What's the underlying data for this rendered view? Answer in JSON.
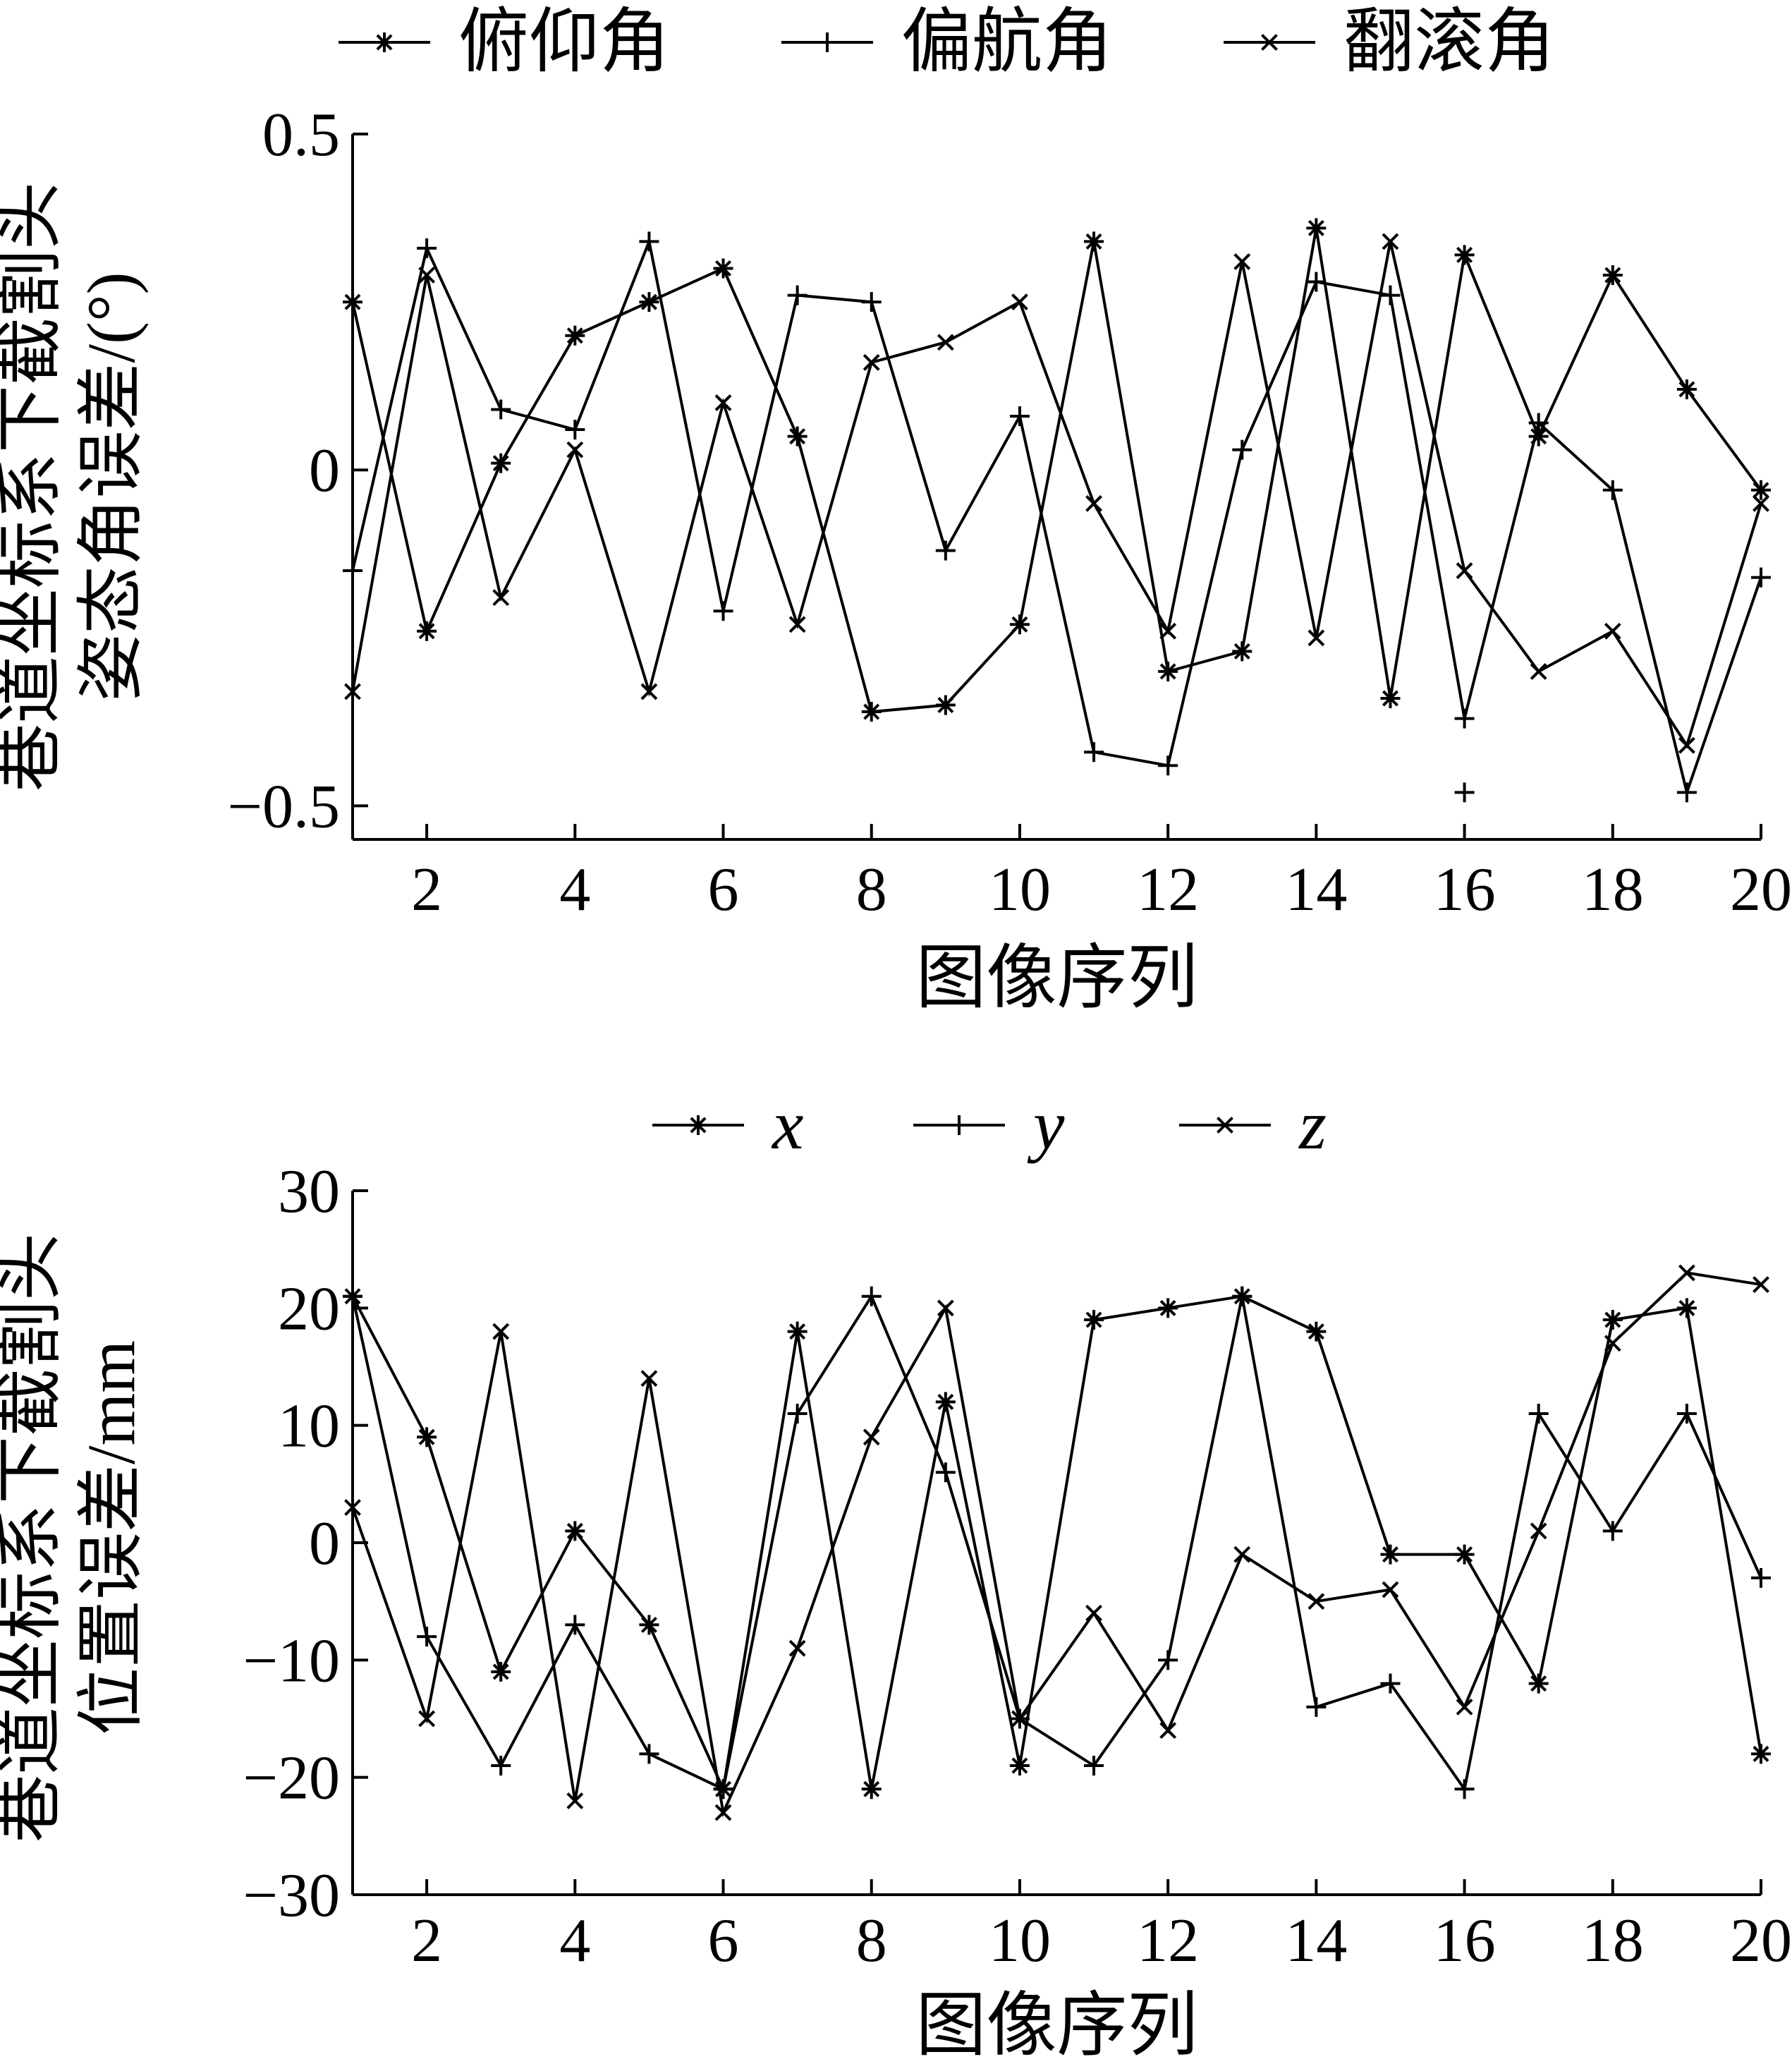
{
  "chart_data": [
    {
      "type": "line",
      "xlabel": "图像序列",
      "ylabel": [
        "巷道坐标系下截割头",
        "姿态角误差/(°)"
      ],
      "x": [
        1,
        2,
        3,
        4,
        5,
        6,
        7,
        8,
        9,
        10,
        11,
        12,
        13,
        14,
        15,
        16,
        17,
        18,
        19,
        20
      ],
      "xticks": [
        2,
        4,
        6,
        8,
        10,
        12,
        14,
        16,
        18,
        20
      ],
      "yticks": [
        -0.5,
        0,
        0.5
      ],
      "ytick_labels": [
        "−0.5",
        "0",
        "0.5"
      ],
      "ylim": [
        -0.55,
        0.5
      ],
      "legend_position": "top",
      "series": [
        {
          "name": "俯仰角",
          "marker": "asterisk",
          "values": [
            0.25,
            -0.24,
            0.01,
            0.2,
            0.25,
            0.3,
            0.05,
            -0.36,
            -0.35,
            -0.23,
            0.34,
            -0.3,
            -0.27,
            0.36,
            -0.34,
            0.32,
            0.05,
            0.29,
            0.12,
            -0.03
          ]
        },
        {
          "name": "偏航角",
          "marker": "plus",
          "values": [
            -0.15,
            0.33,
            0.09,
            0.06,
            0.34,
            -0.21,
            0.26,
            0.25,
            -0.12,
            0.08,
            -0.42,
            -0.44,
            0.03,
            0.28,
            0.26,
            -0.37,
            0.07,
            -0.03,
            -0.48,
            -0.16
          ]
        },
        {
          "name": "翻滚角",
          "marker": "cross",
          "values": [
            -0.33,
            0.29,
            -0.19,
            0.03,
            -0.33,
            0.1,
            -0.23,
            0.16,
            0.19,
            0.25,
            -0.05,
            -0.24,
            0.31,
            -0.25,
            0.34,
            -0.15,
            -0.3,
            -0.24,
            -0.41,
            -0.05
          ]
        }
      ],
      "outlier_markers": [
        {
          "x": 16,
          "y": -0.48,
          "marker": "plus"
        }
      ]
    },
    {
      "type": "line",
      "xlabel": "图像序列",
      "ylabel": [
        "巷道坐标系下截割头",
        "位置误差/mm"
      ],
      "x": [
        1,
        2,
        3,
        4,
        5,
        6,
        7,
        8,
        9,
        10,
        11,
        12,
        13,
        14,
        15,
        16,
        17,
        18,
        19,
        20
      ],
      "xticks": [
        2,
        4,
        6,
        8,
        10,
        12,
        14,
        16,
        18,
        20
      ],
      "yticks": [
        -30,
        -20,
        -10,
        0,
        10,
        20,
        30
      ],
      "ytick_labels": [
        "−30",
        "−20",
        "−10",
        "0",
        "10",
        "20",
        "30"
      ],
      "ylim": [
        -30,
        30
      ],
      "legend_position": "top",
      "series": [
        {
          "name": "x",
          "marker": "asterisk",
          "values": [
            21,
            9,
            -11,
            1,
            -7,
            -21,
            18,
            -21,
            12,
            -19,
            19,
            20,
            21,
            18,
            -1,
            -1,
            -12,
            19,
            20,
            -18
          ]
        },
        {
          "name": "y",
          "marker": "plus",
          "values": [
            21,
            -8,
            -19,
            -7,
            -18,
            -21,
            11,
            21,
            6,
            -15,
            -19,
            -10,
            21,
            -14,
            -12,
            -21,
            11,
            1,
            11,
            -3
          ]
        },
        {
          "name": "z",
          "marker": "cross",
          "values": [
            3,
            -15,
            18,
            -22,
            14,
            -23,
            -9,
            9,
            20,
            -15,
            -6,
            -16,
            -1,
            -5,
            -4,
            -14,
            1,
            17,
            23,
            22
          ]
        }
      ]
    }
  ]
}
